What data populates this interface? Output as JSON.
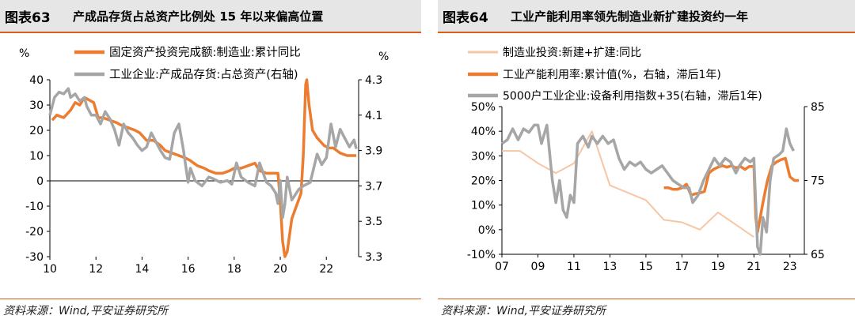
{
  "left": {
    "figure_label": "图表63",
    "title": "产成品存货占总资产比例处 15 年以来偏高位置",
    "source": "资料来源：Wind,平安证券研究所",
    "colors": {
      "orange": "#ec7c30",
      "gray": "#a6a6a6",
      "accent": "#d55f1c"
    }
  },
  "right": {
    "figure_label": "图表64",
    "title": "工业产能利用率领先制造业新扩建投资约一年",
    "source": "资料来源：Wind,平安证券研究所",
    "colors": {
      "light": "#f6c6a5",
      "orange": "#ec7c30",
      "gray": "#a6a6a6",
      "accent": "#d55f1c"
    }
  },
  "chart_data": [
    {
      "type": "line",
      "title": "产成品存货占总资产比例处 15 年以来偏高位置",
      "ylabel_left": "%",
      "ylabel_right": "%",
      "ylim_left": [
        -30,
        40
      ],
      "ylim_right": [
        3.3,
        4.3
      ],
      "yticks_left": [
        "40",
        "30",
        "20",
        "10",
        "0",
        "-10",
        "-20",
        "-30"
      ],
      "yticks_right": [
        "4.3",
        "4.1",
        "3.9",
        "3.7",
        "3.5",
        "3.3"
      ],
      "xlim": [
        2010,
        2023.4
      ],
      "xticks": [
        "10",
        "12",
        "14",
        "16",
        "18",
        "20",
        "22"
      ],
      "series": [
        {
          "name": "固定资产投资完成额:制造业:累计同比",
          "axis": "left",
          "color": "#ec7c30",
          "x": [
            2010.1,
            2010.3,
            2010.6,
            2010.9,
            2011.1,
            2011.3,
            2011.5,
            2011.7,
            2011.9,
            2012.1,
            2012.3,
            2012.6,
            2012.9,
            2013.1,
            2013.4,
            2013.7,
            2013.9,
            2014.2,
            2014.5,
            2014.8,
            2015.0,
            2015.3,
            2015.6,
            2015.9,
            2016.1,
            2016.4,
            2016.7,
            2016.9,
            2017.2,
            2017.5,
            2017.8,
            2018.0,
            2018.3,
            2018.6,
            2018.9,
            2019.1,
            2019.4,
            2019.7,
            2019.9,
            2020.0,
            2020.1,
            2020.2,
            2020.3,
            2020.5,
            2020.7,
            2020.9,
            2021.0,
            2021.1,
            2021.15,
            2021.25,
            2021.4,
            2021.6,
            2021.8,
            2021.9,
            2022.1,
            2022.3,
            2022.6,
            2022.9,
            2023.1,
            2023.3
          ],
          "values": [
            24,
            26,
            25,
            28,
            31,
            30,
            33,
            32,
            31,
            25,
            25,
            24,
            23,
            22,
            21,
            20,
            19,
            16,
            16,
            14,
            12,
            11,
            10,
            9,
            8,
            6,
            5,
            4,
            3,
            3,
            4,
            5,
            5,
            6,
            7,
            4,
            3,
            3,
            3,
            -8,
            -24,
            -30,
            -28,
            -15,
            -10,
            -5,
            10,
            38,
            40,
            30,
            20,
            17,
            15,
            14,
            13,
            13,
            11,
            10,
            10,
            10
          ]
        },
        {
          "name": "工业企业:产成品存货:占总资产(右轴)",
          "axis": "right",
          "color": "#a6a6a6",
          "x": [
            2010.0,
            2010.2,
            2010.4,
            2010.6,
            2010.8,
            2010.9,
            2011.1,
            2011.3,
            2011.5,
            2011.6,
            2011.8,
            2012.0,
            2012.2,
            2012.4,
            2012.6,
            2012.8,
            2013.0,
            2013.2,
            2013.4,
            2013.6,
            2013.8,
            2014.0,
            2014.2,
            2014.4,
            2014.6,
            2014.8,
            2015.0,
            2015.2,
            2015.4,
            2015.6,
            2015.8,
            2016.0,
            2016.1,
            2016.3,
            2016.6,
            2016.9,
            2017.1,
            2017.4,
            2017.7,
            2017.9,
            2018.1,
            2018.3,
            2018.6,
            2018.9,
            2019.1,
            2019.4,
            2019.6,
            2019.8,
            2019.9,
            2020.0,
            2020.1,
            2020.2,
            2020.3,
            2020.5,
            2020.8,
            2021.0,
            2021.3,
            2021.6,
            2021.8,
            2022.0,
            2022.2,
            2022.4,
            2022.6,
            2022.8,
            2023.0,
            2023.2,
            2023.3
          ],
          "values": [
            4.1,
            4.2,
            4.23,
            4.22,
            4.25,
            4.2,
            4.22,
            4.18,
            4.2,
            4.15,
            4.1,
            4.1,
            4.05,
            4.12,
            4.08,
            4.02,
            3.93,
            4.05,
            4.0,
            3.97,
            3.93,
            3.9,
            3.92,
            4.0,
            3.95,
            3.9,
            3.86,
            3.85,
            4.0,
            4.05,
            3.9,
            3.72,
            3.8,
            3.73,
            3.7,
            3.75,
            3.74,
            3.72,
            3.73,
            3.71,
            3.83,
            3.75,
            3.72,
            3.7,
            3.83,
            3.72,
            3.7,
            3.66,
            3.6,
            3.73,
            3.52,
            3.6,
            3.75,
            3.62,
            3.68,
            3.7,
            3.72,
            3.88,
            3.82,
            3.86,
            4.05,
            3.92,
            4.02,
            3.97,
            3.92,
            3.96,
            3.91
          ]
        }
      ]
    },
    {
      "type": "line",
      "title": "工业产能利用率领先制造业新扩建投资约一年",
      "ylim_left": [
        -10,
        50
      ],
      "ylim_right": [
        65,
        85
      ],
      "yticks_left": [
        "50%",
        "40%",
        "30%",
        "20%",
        "10%",
        "0%",
        "-10%"
      ],
      "yticks_right": [
        "85",
        "75",
        "65"
      ],
      "xlim": [
        2007,
        2023.8
      ],
      "xticks": [
        "07",
        "09",
        "11",
        "13",
        "15",
        "17",
        "19",
        "21",
        "23"
      ],
      "series": [
        {
          "name": "制造业投资:新建+扩建:同比",
          "axis": "left",
          "color": "#f6c6a5",
          "x": [
            2007.0,
            2008.0,
            2009.0,
            2010.0,
            2011.0,
            2012.0,
            2013.0,
            2014.0,
            2015.0,
            2016.0,
            2017.0,
            2018.0,
            2019.0,
            2020.0,
            2021.0
          ],
          "values": [
            32,
            32,
            27,
            23,
            27,
            40,
            18,
            15,
            12,
            4,
            3,
            0,
            7,
            2,
            -3
          ]
        },
        {
          "name": "工业产能利用率:累计值(%，右轴，滞后1年)",
          "axis": "right",
          "color": "#ec7c30",
          "x": [
            2016.0,
            2016.25,
            2016.5,
            2016.75,
            2017.0,
            2017.25,
            2017.5,
            2017.75,
            2018.0,
            2018.25,
            2018.5,
            2018.75,
            2019.0,
            2019.25,
            2019.5,
            2019.75,
            2020.0,
            2020.25,
            2020.5,
            2020.75,
            2021.0,
            2021.1,
            2021.2,
            2021.5,
            2021.75,
            2022.0,
            2022.25,
            2022.5,
            2022.75,
            2023.0,
            2023.25,
            2023.5
          ],
          "values": [
            74.0,
            74.0,
            73.8,
            73.8,
            74.0,
            74.5,
            73.0,
            73.2,
            73.3,
            73.5,
            76.0,
            76.5,
            76.8,
            77.0,
            76.8,
            77.0,
            76.7,
            76.9,
            76.5,
            76.9,
            76.9,
            70.0,
            68.0,
            72.0,
            75.0,
            77.0,
            77.5,
            77.8,
            78.0,
            75.5,
            75.0,
            75.0
          ]
        },
        {
          "name": "5000户工业企业:设备利用指数+35(右轴，滞后1年)",
          "axis": "right",
          "color": "#a6a6a6",
          "x": [
            2007.0,
            2007.3,
            2007.6,
            2007.9,
            2008.2,
            2008.5,
            2008.8,
            2009.0,
            2009.2,
            2009.5,
            2009.8,
            2010.0,
            2010.2,
            2010.4,
            2010.6,
            2010.8,
            2011.0,
            2011.2,
            2011.5,
            2011.8,
            2012.0,
            2012.3,
            2012.6,
            2012.9,
            2013.2,
            2013.5,
            2013.8,
            2014.1,
            2014.4,
            2014.7,
            2015.0,
            2015.3,
            2015.6,
            2015.9,
            2016.2,
            2016.5,
            2016.8,
            2017.1,
            2017.4,
            2017.6,
            2017.9,
            2018.2,
            2018.5,
            2018.8,
            2019.1,
            2019.4,
            2019.7,
            2020.0,
            2020.2,
            2020.5,
            2020.8,
            2021.0,
            2021.1,
            2021.2,
            2021.35,
            2021.5,
            2021.7,
            2021.9,
            2022.1,
            2022.4,
            2022.6,
            2022.8,
            2023.0,
            2023.2
          ],
          "values": [
            80,
            80.5,
            82,
            80.5,
            82,
            81.5,
            82.5,
            82.5,
            80,
            82.5,
            75,
            72,
            75,
            71,
            70,
            73,
            72,
            80,
            81,
            79.5,
            81,
            80,
            81,
            80,
            80.5,
            78,
            76.5,
            77.5,
            77,
            77.5,
            76.5,
            76,
            76.5,
            77,
            76,
            75,
            74.5,
            74,
            74,
            72,
            73,
            75,
            76.5,
            78,
            77,
            78,
            77.5,
            76,
            77,
            78,
            77.5,
            78,
            72,
            66,
            65,
            70,
            68,
            75,
            78,
            78.5,
            79,
            82,
            80,
            79
          ]
        }
      ]
    }
  ]
}
